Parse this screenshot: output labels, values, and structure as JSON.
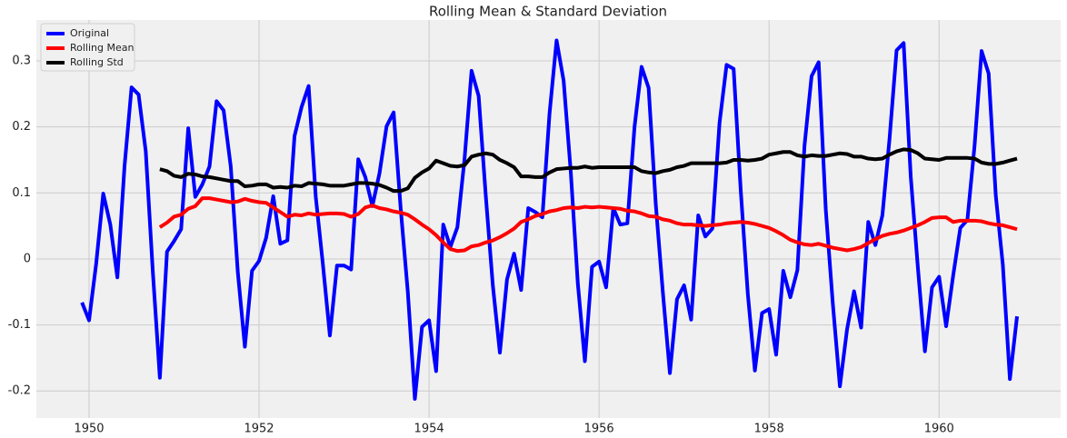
{
  "chart_data": {
    "type": "line",
    "title": "Rolling Mean & Standard Deviation",
    "x": [
      1949.917,
      1950.0,
      1950.083,
      1950.167,
      1950.25,
      1950.333,
      1950.417,
      1950.5,
      1950.583,
      1950.667,
      1950.75,
      1950.833,
      1950.917,
      1951.0,
      1951.083,
      1951.167,
      1951.25,
      1951.333,
      1951.417,
      1951.5,
      1951.583,
      1951.667,
      1951.75,
      1951.833,
      1951.917,
      1952.0,
      1952.083,
      1952.167,
      1952.25,
      1952.333,
      1952.417,
      1952.5,
      1952.583,
      1952.667,
      1952.75,
      1952.833,
      1952.917,
      1953.0,
      1953.083,
      1953.167,
      1953.25,
      1953.333,
      1953.417,
      1953.5,
      1953.583,
      1953.667,
      1953.75,
      1953.833,
      1953.917,
      1954.0,
      1954.083,
      1954.167,
      1954.25,
      1954.333,
      1954.417,
      1954.5,
      1954.583,
      1954.667,
      1954.75,
      1954.833,
      1954.917,
      1955.0,
      1955.083,
      1955.167,
      1955.25,
      1955.333,
      1955.417,
      1955.5,
      1955.583,
      1955.667,
      1955.75,
      1955.833,
      1955.917,
      1956.0,
      1956.083,
      1956.167,
      1956.25,
      1956.333,
      1956.417,
      1956.5,
      1956.583,
      1956.667,
      1956.75,
      1956.833,
      1956.917,
      1957.0,
      1957.083,
      1957.167,
      1957.25,
      1957.333,
      1957.417,
      1957.5,
      1957.583,
      1957.667,
      1957.75,
      1957.833,
      1957.917,
      1958.0,
      1958.083,
      1958.167,
      1958.25,
      1958.333,
      1958.417,
      1958.5,
      1958.583,
      1958.667,
      1958.75,
      1958.833,
      1958.917,
      1959.0,
      1959.083,
      1959.167,
      1959.25,
      1959.333,
      1959.417,
      1959.5,
      1959.583,
      1959.667,
      1959.75,
      1959.833,
      1959.917,
      1960.0,
      1960.083,
      1960.167,
      1960.25,
      1960.333,
      1960.417,
      1960.5,
      1960.583,
      1960.667,
      1960.75,
      1960.833,
      1960.917
    ],
    "series": [
      {
        "name": "Original",
        "color": "#0000ff",
        "values": [
          -0.066,
          -0.093,
          -0.008,
          0.099,
          0.052,
          -0.028,
          0.14,
          0.26,
          0.249,
          0.163,
          -0.019,
          -0.18,
          0.011,
          0.027,
          0.045,
          0.198,
          0.094,
          0.113,
          0.14,
          0.239,
          0.225,
          0.14,
          -0.02,
          -0.133,
          -0.018,
          -0.003,
          0.032,
          0.095,
          0.023,
          0.028,
          0.186,
          0.23,
          0.262,
          0.094,
          -0.007,
          -0.116,
          -0.01,
          -0.01,
          -0.016,
          0.151,
          0.124,
          0.08,
          0.13,
          0.201,
          0.222,
          0.075,
          -0.05,
          -0.212,
          -0.103,
          -0.093,
          -0.17,
          0.052,
          0.018,
          0.048,
          0.151,
          0.285,
          0.247,
          0.096,
          -0.04,
          -0.142,
          -0.031,
          0.008,
          -0.047,
          0.077,
          0.071,
          0.063,
          0.22,
          0.331,
          0.27,
          0.132,
          -0.037,
          -0.155,
          -0.012,
          -0.004,
          -0.043,
          0.077,
          0.052,
          0.054,
          0.2,
          0.291,
          0.259,
          0.083,
          -0.05,
          -0.173,
          -0.061,
          -0.04,
          -0.092,
          0.066,
          0.034,
          0.046,
          0.206,
          0.294,
          0.288,
          0.103,
          -0.053,
          -0.169,
          -0.082,
          -0.076,
          -0.145,
          -0.018,
          -0.058,
          -0.017,
          0.172,
          0.277,
          0.298,
          0.075,
          -0.068,
          -0.193,
          -0.107,
          -0.049,
          -0.104,
          0.056,
          0.021,
          0.066,
          0.182,
          0.316,
          0.327,
          0.124,
          -0.012,
          -0.14,
          -0.043,
          -0.027,
          -0.102,
          -0.024,
          0.047,
          0.059,
          0.171,
          0.315,
          0.281,
          0.096,
          -0.009,
          -0.182,
          -0.087
        ]
      },
      {
        "name": "Rolling Mean",
        "color": "#ff0000",
        "values": [
          null,
          null,
          null,
          null,
          null,
          null,
          null,
          null,
          null,
          null,
          null,
          0.048,
          0.055,
          0.064,
          0.067,
          0.076,
          0.08,
          0.092,
          0.092,
          0.09,
          0.088,
          0.086,
          0.087,
          0.091,
          0.088,
          0.086,
          0.085,
          0.078,
          0.071,
          0.064,
          0.067,
          0.066,
          0.069,
          0.067,
          0.068,
          0.069,
          0.069,
          0.068,
          0.064,
          0.068,
          0.078,
          0.081,
          0.077,
          0.075,
          0.072,
          0.07,
          0.067,
          0.06,
          0.052,
          0.045,
          0.036,
          0.025,
          0.015,
          0.012,
          0.013,
          0.019,
          0.021,
          0.025,
          0.028,
          0.033,
          0.039,
          0.046,
          0.056,
          0.06,
          0.065,
          0.068,
          0.072,
          0.074,
          0.077,
          0.078,
          0.077,
          0.079,
          0.078,
          0.079,
          0.078,
          0.077,
          0.076,
          0.073,
          0.072,
          0.069,
          0.065,
          0.064,
          0.06,
          0.058,
          0.054,
          0.052,
          0.052,
          0.051,
          0.05,
          0.051,
          0.052,
          0.054,
          0.055,
          0.056,
          0.055,
          0.053,
          0.05,
          0.047,
          0.042,
          0.036,
          0.029,
          0.025,
          0.022,
          0.021,
          0.023,
          0.02,
          0.017,
          0.015,
          0.013,
          0.015,
          0.018,
          0.024,
          0.03,
          0.035,
          0.038,
          0.04,
          0.043,
          0.047,
          0.051,
          0.056,
          0.062,
          0.063,
          0.063,
          0.056,
          0.058,
          0.058,
          0.058,
          0.057,
          0.054,
          0.052,
          0.051,
          0.048,
          0.045
        ]
      },
      {
        "name": "Rolling Std",
        "color": "#000000",
        "values": [
          null,
          null,
          null,
          null,
          null,
          null,
          null,
          null,
          null,
          null,
          null,
          0.136,
          0.133,
          0.126,
          0.124,
          0.129,
          0.128,
          0.125,
          0.124,
          0.122,
          0.12,
          0.118,
          0.118,
          0.11,
          0.111,
          0.113,
          0.113,
          0.108,
          0.109,
          0.108,
          0.111,
          0.11,
          0.115,
          0.114,
          0.113,
          0.111,
          0.111,
          0.111,
          0.113,
          0.115,
          0.115,
          0.114,
          0.112,
          0.108,
          0.103,
          0.103,
          0.107,
          0.123,
          0.131,
          0.137,
          0.149,
          0.145,
          0.141,
          0.14,
          0.142,
          0.155,
          0.158,
          0.16,
          0.158,
          0.15,
          0.145,
          0.139,
          0.125,
          0.125,
          0.124,
          0.124,
          0.131,
          0.136,
          0.137,
          0.138,
          0.138,
          0.14,
          0.138,
          0.139,
          0.139,
          0.139,
          0.139,
          0.139,
          0.139,
          0.133,
          0.131,
          0.13,
          0.133,
          0.135,
          0.139,
          0.141,
          0.145,
          0.145,
          0.145,
          0.145,
          0.145,
          0.146,
          0.15,
          0.15,
          0.149,
          0.15,
          0.152,
          0.158,
          0.16,
          0.162,
          0.162,
          0.157,
          0.155,
          0.157,
          0.156,
          0.156,
          0.158,
          0.16,
          0.159,
          0.155,
          0.155,
          0.152,
          0.151,
          0.152,
          0.158,
          0.163,
          0.166,
          0.165,
          0.16,
          0.152,
          0.151,
          0.15,
          0.153,
          0.153,
          0.153,
          0.153,
          0.152,
          0.146,
          0.144,
          0.144,
          0.146,
          0.149,
          0.152
        ]
      }
    ],
    "xlim": [
      1949.38,
      1961.43
    ],
    "xticks": [
      1950,
      1952,
      1954,
      1956,
      1958,
      1960
    ],
    "ylim": [
      -0.241,
      0.362
    ],
    "yticks": [
      -0.2,
      -0.1,
      0.0,
      0.1,
      0.2,
      0.3
    ],
    "grid": true,
    "legend": "upper left"
  }
}
